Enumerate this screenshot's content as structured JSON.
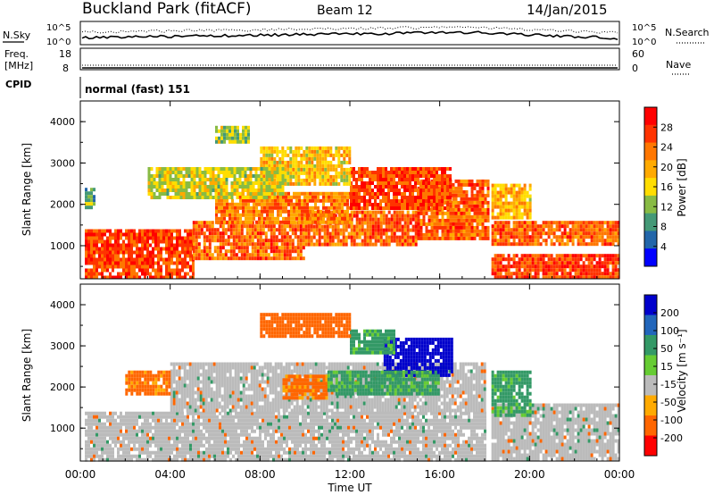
{
  "header": {
    "site": "Buckland Park (fitACF)",
    "beam": "Beam 12",
    "date": "14/Jan/2015"
  },
  "status": {
    "nsky_label": "N.Sky",
    "nsearch_label": "N.Search",
    "freq_label_1": "Freq.",
    "freq_label_2": "[MHz]",
    "nave_label": "Nave",
    "cpid_label": "CPID",
    "cpid_value": "normal (fast) 151",
    "noise_ticks_left": [
      "10^5",
      "10^0"
    ],
    "noise_ticks_right": [
      "10^5",
      "10^0"
    ],
    "freq_ticks": [
      "18",
      "8"
    ],
    "nave_ticks": [
      "60",
      "0"
    ]
  },
  "chart_data": [
    {
      "type": "heatmap",
      "panel": "power",
      "ylabel": "Slant Range [km]",
      "xlabel": "",
      "colorbar_label": "Power [dB]",
      "colorbar_ticks": [
        "28",
        "24",
        "20",
        "16",
        "12",
        "8",
        "4"
      ],
      "colorbar_colors": [
        "#ff0000",
        "#ff3300",
        "#ff7700",
        "#ffaa00",
        "#ffdd00",
        "#88bb44",
        "#449977",
        "#2266aa",
        "#0000ff"
      ],
      "ylim": [
        200,
        4500
      ],
      "yticks": [
        1000,
        2000,
        3000,
        4000
      ],
      "xlim": [
        0,
        24
      ],
      "x_tick_hours": [
        0,
        4,
        8,
        12,
        16,
        20,
        24
      ],
      "bands": [
        {
          "x0": 0.2,
          "x1": 5,
          "y0": 250,
          "y1": 1400,
          "value": 26
        },
        {
          "x0": 5,
          "x1": 10,
          "y0": 700,
          "y1": 1600,
          "value": 24
        },
        {
          "x0": 10,
          "x1": 15,
          "y0": 1000,
          "y1": 1850,
          "value": 24
        },
        {
          "x0": 15,
          "x1": 18.2,
          "y0": 1200,
          "y1": 2600,
          "value": 24
        },
        {
          "x0": 6,
          "x1": 12,
          "y0": 1600,
          "y1": 2300,
          "value": 22
        },
        {
          "x0": 12,
          "x1": 16.5,
          "y0": 1900,
          "y1": 2900,
          "value": 26
        },
        {
          "x0": 8,
          "x1": 12,
          "y0": 2500,
          "y1": 3400,
          "value": 17
        },
        {
          "x0": 3,
          "x1": 9,
          "y0": 2200,
          "y1": 2900,
          "value": 14
        },
        {
          "x0": 18.3,
          "x1": 24,
          "y0": 250,
          "y1": 800,
          "value": 26
        },
        {
          "x0": 18.3,
          "x1": 24,
          "y0": 1050,
          "y1": 1600,
          "value": 24
        },
        {
          "x0": 18.3,
          "x1": 20,
          "y0": 1700,
          "y1": 2500,
          "value": 18
        },
        {
          "x0": 0.2,
          "x1": 0.6,
          "y0": 1900,
          "y1": 2400,
          "value": 10
        },
        {
          "x0": 6,
          "x1": 7.5,
          "y0": 3500,
          "y1": 3900,
          "value": 12
        }
      ]
    },
    {
      "type": "heatmap",
      "panel": "velocity",
      "ylabel": "Slant Range [km]",
      "xlabel": "Time UT",
      "colorbar_label": "Velocity [m s⁻¹]",
      "colorbar_ticks": [
        "200",
        "100",
        "50",
        "15",
        "-15",
        "-50",
        "-100",
        "-200"
      ],
      "colorbar_colors": [
        "#0000cc",
        "#2266bb",
        "#339966",
        "#66cc33",
        "#bbbbbb",
        "#ffaa00",
        "#ff6600",
        "#ff0000"
      ],
      "ylim": [
        200,
        4500
      ],
      "yticks": [
        1000,
        2000,
        3000,
        4000
      ],
      "xlim": [
        0,
        24
      ],
      "x_tick_hours": [
        0,
        4,
        8,
        12,
        16,
        20,
        24
      ],
      "bands": [
        {
          "x0": 0.2,
          "x1": 18,
          "y0": 250,
          "y1": 1400,
          "value": 0
        },
        {
          "x0": 4,
          "x1": 18,
          "y0": 1400,
          "y1": 2600,
          "value": 0
        },
        {
          "x0": 9,
          "x1": 11,
          "y0": 1700,
          "y1": 2300,
          "value": -40
        },
        {
          "x0": 13.5,
          "x1": 16.5,
          "y0": 2300,
          "y1": 3200,
          "value": 200
        },
        {
          "x0": 11,
          "x1": 16,
          "y0": 1800,
          "y1": 2400,
          "value": 40
        },
        {
          "x0": 12,
          "x1": 14,
          "y0": 2800,
          "y1": 3400,
          "value": 40
        },
        {
          "x0": 8,
          "x1": 12,
          "y0": 3200,
          "y1": 3800,
          "value": -50
        },
        {
          "x0": 18.3,
          "x1": 24,
          "y0": 250,
          "y1": 1600,
          "value": 0
        },
        {
          "x0": 18.3,
          "x1": 20,
          "y0": 1300,
          "y1": 2400,
          "value": 40
        },
        {
          "x0": 2,
          "x1": 4,
          "y0": 1800,
          "y1": 2400,
          "value": -40
        }
      ]
    }
  ],
  "time_axis": {
    "labels": [
      "00:00",
      "04:00",
      "08:00",
      "12:00",
      "16:00",
      "20:00",
      "00:00"
    ],
    "xlabel": "Time UT"
  },
  "y_tick_labels": [
    "1000",
    "2000",
    "3000",
    "4000"
  ]
}
